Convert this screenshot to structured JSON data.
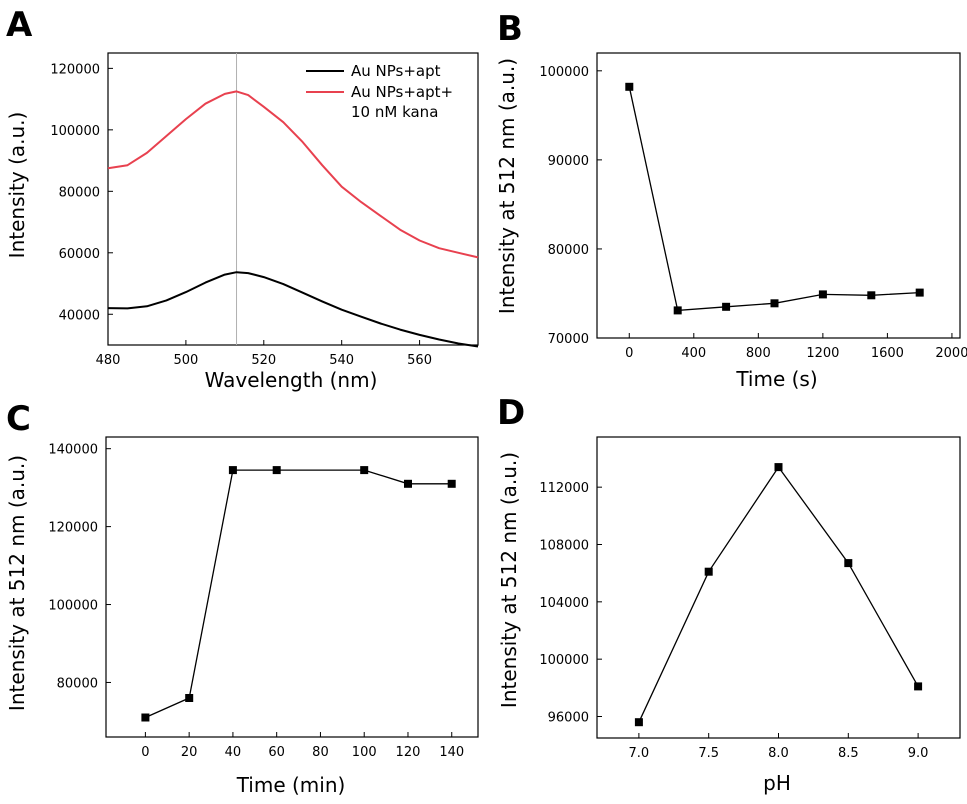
{
  "chart_data": [
    {
      "panel": "A",
      "type": "line",
      "xlabel": "Wavelength (nm)",
      "ylabel": "Intensity (a.u.)",
      "xlim": [
        480,
        575
      ],
      "ylim": [
        30000,
        125000
      ],
      "xticks": [
        480,
        500,
        520,
        540,
        560
      ],
      "yticks": [
        40000,
        60000,
        80000,
        100000,
        120000
      ],
      "vline_x": 513,
      "legend": {
        "placement": "top-right"
      },
      "series": [
        {
          "name_lines": [
            "Au NPs+apt"
          ],
          "color": "#000000",
          "x": [
            480,
            485,
            490,
            495,
            500,
            505,
            510,
            513,
            516,
            520,
            525,
            530,
            535,
            540,
            545,
            550,
            555,
            560,
            565,
            570,
            575
          ],
          "y": [
            42000,
            41900,
            42600,
            44500,
            47200,
            50300,
            52900,
            53700,
            53400,
            52100,
            49800,
            47000,
            44200,
            41500,
            39200,
            37000,
            35000,
            33300,
            31800,
            30500,
            29500
          ]
        },
        {
          "name_lines": [
            "Au NPs+apt+",
            "10 nM kana"
          ],
          "color": "#e8414f",
          "x": [
            480,
            485,
            490,
            495,
            500,
            505,
            510,
            513,
            516,
            520,
            525,
            530,
            535,
            540,
            545,
            550,
            555,
            560,
            565,
            570,
            575
          ],
          "y": [
            87500,
            88500,
            92500,
            98000,
            103500,
            108500,
            111700,
            112500,
            111300,
            107500,
            102500,
            96000,
            88500,
            81500,
            76500,
            72000,
            67500,
            64000,
            61500,
            60000,
            58500
          ]
        }
      ]
    },
    {
      "panel": "B",
      "type": "line",
      "xlabel": "Time (s)",
      "ylabel": "Intensity at 512 nm (a.u.)",
      "xlim": [
        -200,
        2050
      ],
      "ylim": [
        70000,
        102000
      ],
      "xticks": [
        0,
        400,
        800,
        1200,
        1600,
        2000
      ],
      "yticks": [
        70000,
        80000,
        90000,
        100000
      ],
      "series": [
        {
          "x": [
            0,
            300,
            600,
            900,
            1200,
            1500,
            1800
          ],
          "y": [
            98200,
            73100,
            73500,
            73900,
            74900,
            74800,
            75100
          ]
        }
      ]
    },
    {
      "panel": "C",
      "type": "line",
      "xlabel": "Time (min)",
      "ylabel": "Intensity at 512 nm (a.u.)",
      "xlim": [
        -18,
        152
      ],
      "ylim": [
        66000,
        143000
      ],
      "xticks": [
        0,
        20,
        40,
        60,
        80,
        100,
        120,
        140
      ],
      "yticks": [
        80000,
        100000,
        120000,
        140000
      ],
      "series": [
        {
          "x": [
            0,
            20,
            40,
            60,
            100,
            120,
            140
          ],
          "y": [
            71000,
            76000,
            134500,
            134500,
            134500,
            131000,
            131000
          ]
        }
      ]
    },
    {
      "panel": "D",
      "type": "line",
      "xlabel": "pH",
      "ylabel": "Intensity at 512 nm (a.u.)",
      "xlim": [
        6.7,
        9.3
      ],
      "ylim": [
        94500,
        115500
      ],
      "xticks": [
        "7.0",
        "7.5",
        "8.0",
        "8.5",
        "9.0"
      ],
      "yticks": [
        96000,
        100000,
        104000,
        108000,
        112000
      ],
      "series": [
        {
          "x": [
            7.0,
            7.5,
            8.0,
            8.5,
            9.0
          ],
          "y": [
            95600,
            106100,
            113400,
            106700,
            98100
          ]
        }
      ]
    }
  ]
}
